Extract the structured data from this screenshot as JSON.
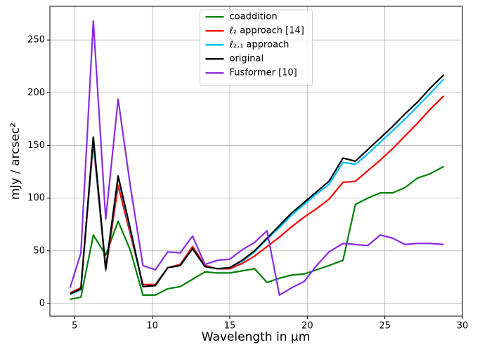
{
  "chart_data": {
    "type": "line",
    "x_label": "Wavelength in µm",
    "y_label": "mJy / arcsec²",
    "x": [
      4.7,
      5.4,
      6.2,
      7.0,
      7.8,
      8.6,
      9.4,
      10.2,
      11.0,
      11.8,
      12.6,
      13.4,
      14.2,
      15.0,
      15.8,
      16.6,
      17.4,
      18.2,
      19.0,
      19.8,
      20.6,
      21.4,
      22.3,
      23.1,
      23.9,
      24.7,
      25.5,
      26.3,
      27.1,
      27.9,
      28.8
    ],
    "series": [
      {
        "name": "coaddition",
        "color": "#008000",
        "values": [
          4,
          6,
          65,
          46,
          78,
          50,
          8,
          8,
          14,
          16,
          23,
          30,
          29,
          29,
          31,
          33,
          20,
          24,
          27,
          28,
          32,
          36,
          41,
          94,
          100,
          105,
          105,
          110,
          119,
          123,
          130
        ]
      },
      {
        "name": "ℓ₂ approach [14]",
        "color": "#ff0000",
        "values": [
          10,
          15,
          152,
          31,
          112,
          65,
          18,
          18,
          34,
          37,
          54,
          36,
          33,
          33,
          38,
          45,
          54,
          63,
          73,
          82,
          90,
          99,
          115,
          116,
          126,
          136,
          147,
          159,
          171,
          184,
          197
        ]
      },
      {
        "name": "ℓ₂,₁ approach",
        "color": "#00bfff",
        "values": [
          8.7,
          13,
          155,
          32,
          120,
          68,
          16,
          17,
          34,
          36,
          52,
          35,
          33,
          34,
          40,
          49,
          61,
          72,
          84,
          94,
          104,
          113,
          134,
          132,
          142,
          153,
          164,
          175,
          187,
          199,
          213
        ]
      },
      {
        "name": "original",
        "color": "#000000",
        "values": [
          9,
          14,
          158,
          33,
          121,
          70,
          16,
          17,
          34,
          36,
          52,
          35,
          33,
          34,
          41,
          50,
          62,
          74,
          86,
          96,
          106,
          116,
          138,
          135,
          146,
          157,
          168,
          180,
          191,
          204,
          217
        ]
      },
      {
        "name": "Fusformer [10]",
        "color": "#8a2be2",
        "values": [
          15,
          48,
          268,
          80,
          194,
          110,
          36,
          32,
          49,
          48,
          64,
          37,
          41,
          42,
          51,
          58,
          69,
          8,
          15,
          21,
          36,
          49,
          57,
          56,
          55,
          65,
          62,
          56,
          57,
          57,
          56
        ]
      }
    ],
    "xlim": [
      3.4,
      30
    ],
    "ylim": [
      -12,
      282
    ],
    "xticks": [
      5,
      10,
      15,
      20,
      25,
      30
    ],
    "yticks": [
      0,
      50,
      100,
      150,
      200,
      250
    ],
    "grid": true,
    "legend": "upper center"
  }
}
